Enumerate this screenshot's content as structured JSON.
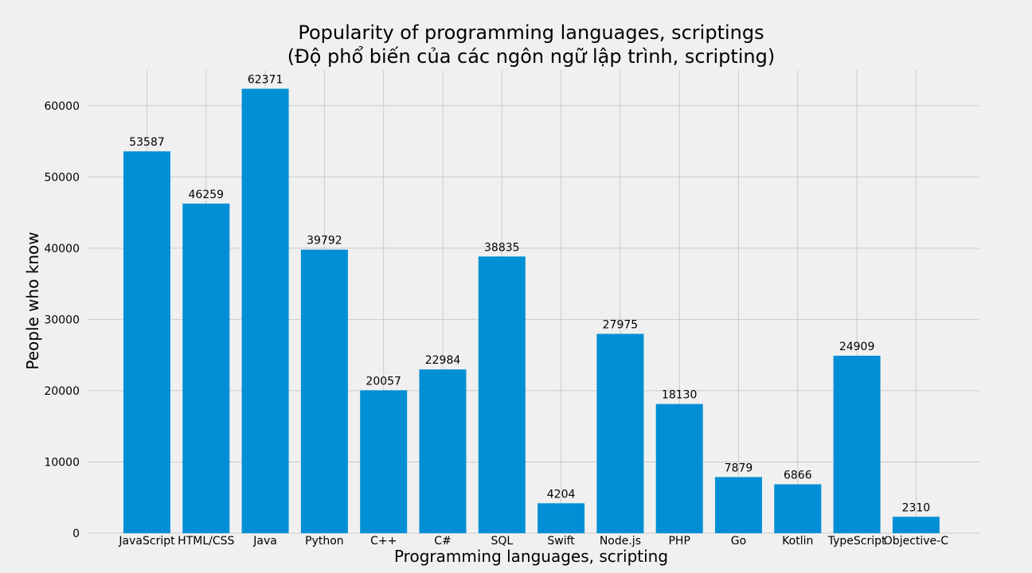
{
  "chart_data": {
    "type": "bar",
    "title": "Popularity of programming languages, scriptings",
    "subtitle": "(Độ phổ biến của các ngôn ngữ lập trình, scripting)",
    "xlabel": "Programming languages, scripting",
    "ylabel": "People who know",
    "categories": [
      "JavaScript",
      "HTML/CSS",
      "Java",
      "Python",
      "C++",
      "C#",
      "SQL",
      "Swift",
      "Node.js",
      "PHP",
      "Go",
      "Kotlin",
      "TypeScript",
      "Objective-C"
    ],
    "values": [
      53587,
      46259,
      62371,
      39792,
      20057,
      22984,
      38835,
      4204,
      27975,
      18130,
      7879,
      6866,
      24909,
      2310
    ],
    "yticks": [
      0,
      10000,
      20000,
      30000,
      40000,
      50000,
      60000
    ],
    "ylim": [
      0,
      65000
    ],
    "grid": true,
    "bar_color": "#008fd5",
    "background_color": "#f0f0f0",
    "grid_color": "#cbcbcb"
  }
}
